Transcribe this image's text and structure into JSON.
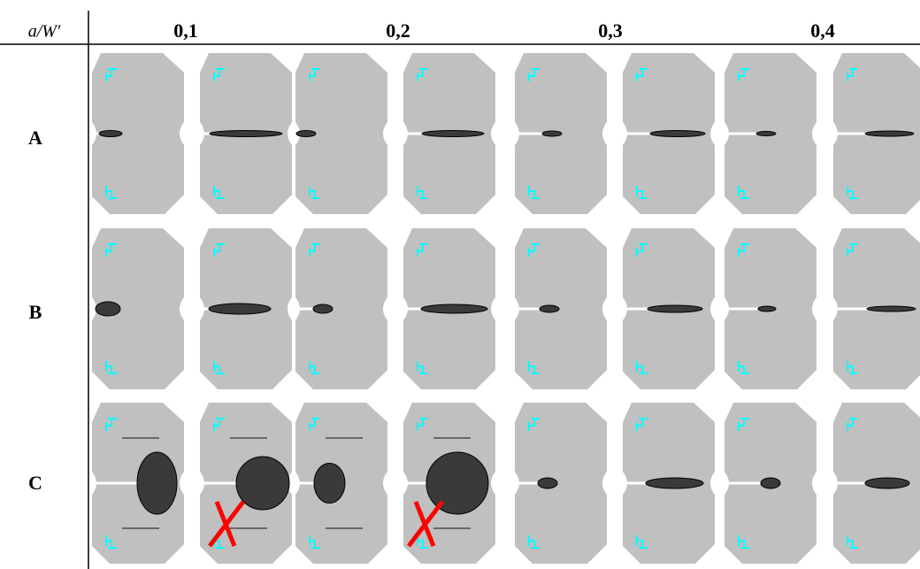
{
  "header": {
    "corner": "a/W′",
    "columns": [
      "0,1",
      "0,2",
      "0,3",
      "0,4"
    ]
  },
  "rows": [
    "A",
    "B",
    "C"
  ]
}
